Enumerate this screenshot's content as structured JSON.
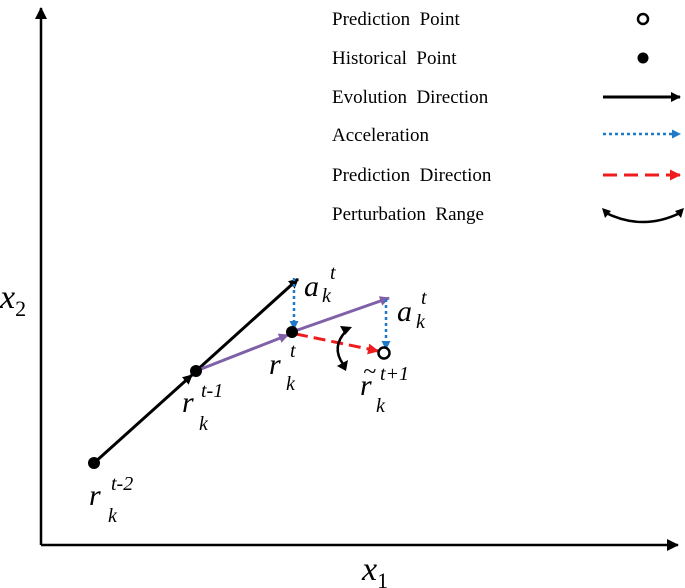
{
  "legend": {
    "items": [
      {
        "label": "Prediction  Point",
        "icon": "hollow-circle-icon"
      },
      {
        "label": "Historical  Point",
        "icon": "filled-circle-icon"
      },
      {
        "label": "Evolution  Direction",
        "icon": "black-arrow-icon"
      },
      {
        "label": "Acceleration",
        "icon": "blue-dotted-arrow-icon"
      },
      {
        "label": "Prediction  Direction",
        "icon": "red-dashed-arrow-icon"
      },
      {
        "label": "Perturbation  Range",
        "icon": "double-curved-arrow-icon"
      }
    ]
  },
  "axes": {
    "x_label": "x",
    "x_sub": "1",
    "y_label": "x",
    "y_sub": "2"
  },
  "points": {
    "p1": {
      "base": "r",
      "sub": "k",
      "sup": "t-2"
    },
    "p2": {
      "base": "r",
      "sub": "k",
      "sup": "t-1"
    },
    "p3": {
      "base": "r",
      "sub": "k",
      "sup": "t"
    },
    "p4": {
      "base": "r",
      "tilde": "~",
      "sub": "k",
      "sup": "t+1"
    },
    "acc1": {
      "base": "a",
      "sub": "k",
      "sup": "t"
    },
    "acc2": {
      "base": "a",
      "sub": "k",
      "sup": "t"
    }
  },
  "colors": {
    "evolution": "#000000",
    "acceleration": "#1f78c8",
    "prediction": "#ee1c1c",
    "velocity": "#8060a8"
  }
}
